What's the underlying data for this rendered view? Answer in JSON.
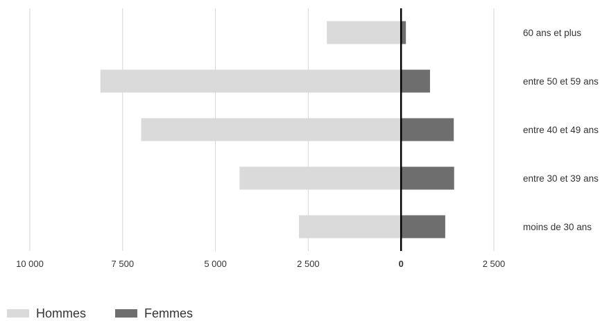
{
  "chart_data": {
    "type": "bar",
    "orientation": "horizontal-diverging",
    "categories": [
      "60 ans et plus",
      "entre 50 et 59 ans",
      "entre 40 et 49 ans",
      "entre 30 et 39 ans",
      "moins de 30 ans"
    ],
    "series": [
      {
        "name": "Hommes",
        "color": "#d9dad9",
        "values": [
          2000,
          8100,
          7000,
          4350,
          2750
        ]
      },
      {
        "name": "Femmes",
        "color": "#6e6e6e",
        "values": [
          130,
          780,
          1420,
          1430,
          1190
        ]
      }
    ],
    "x_ticks": [
      {
        "value": -10000,
        "label": "10 000"
      },
      {
        "value": -7500,
        "label": "7 500"
      },
      {
        "value": -5000,
        "label": "5 000"
      },
      {
        "value": -2500,
        "label": "2 500"
      },
      {
        "value": 0,
        "label": "0"
      },
      {
        "value": 2500,
        "label": "2 500"
      }
    ],
    "xlim": [
      -10000,
      2500
    ],
    "grid": true,
    "legend_position": "bottom-left",
    "title": "",
    "xlabel": "",
    "ylabel": ""
  },
  "legend": [
    {
      "label": "Hommes",
      "color": "#d9dad9"
    },
    {
      "label": "Femmes",
      "color": "#6e6e6e"
    }
  ]
}
